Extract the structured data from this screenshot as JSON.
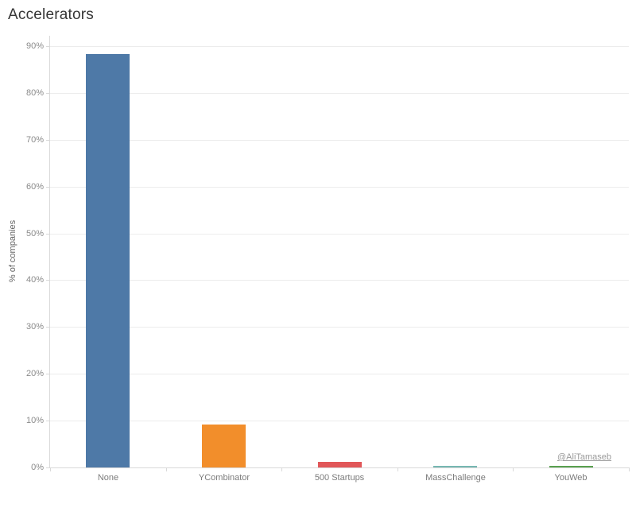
{
  "title": "Accelerators",
  "watermark": "@AliTamaseb",
  "chart_data": {
    "type": "bar",
    "title": "Accelerators",
    "xlabel": "",
    "ylabel": "% of companies",
    "categories": [
      "None",
      "YCombinator",
      "500 Startups",
      "MassChallenge",
      "YouWeb"
    ],
    "values": [
      88.3,
      9.2,
      1.2,
      0.3,
      0.4
    ],
    "colors": [
      "#4e79a7",
      "#f28e2b",
      "#e15759",
      "#76b7b2",
      "#59a14f"
    ],
    "ylim": [
      0,
      90
    ],
    "ytick_step": 10,
    "ytick_format": "percent",
    "grid": true,
    "legend": "none"
  }
}
